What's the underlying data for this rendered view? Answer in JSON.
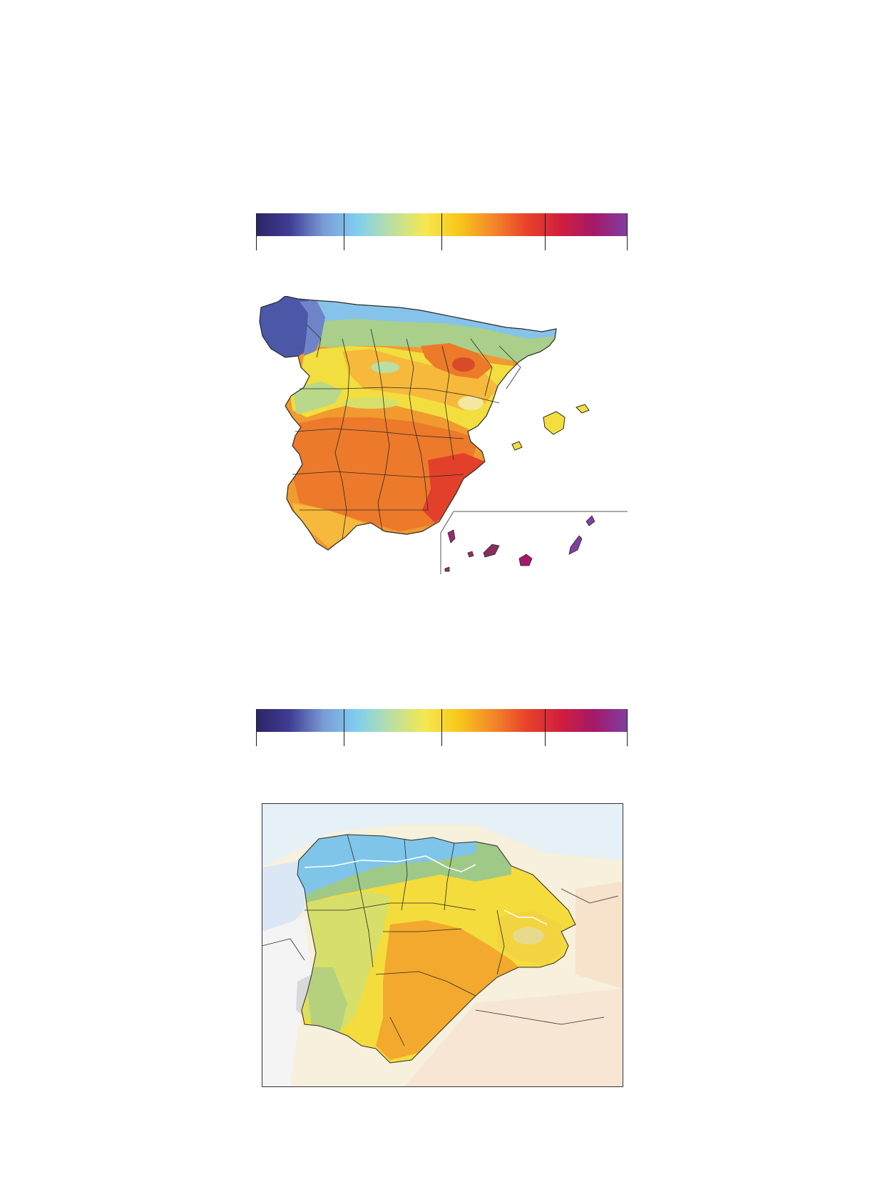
{
  "legend": {
    "colors": [
      "#2d2467",
      "#3f3d94",
      "#7b9bd6",
      "#7fcff0",
      "#b9dfa4",
      "#f5e850",
      "#f8c71a",
      "#f3892a",
      "#e8432a",
      "#d21f3c",
      "#a4196a",
      "#7f3fa0"
    ],
    "tick_labels": [
      "",
      "",
      "",
      "",
      ""
    ]
  },
  "maps": {
    "spain": {
      "outline_color": "#2a2a2a",
      "palette": {
        "northwest": "#4b58a8",
        "north_coast": "#86c3ea",
        "north_green": "#a9cf8b",
        "yellow": "#f2de3e",
        "light_orange": "#f6b93b",
        "orange": "#f09a2f",
        "dark_orange": "#ec7a2a",
        "red": "#e3402b",
        "canary": "#9b2a6d"
      }
    },
    "detail": {
      "frame_color": "#333333",
      "palette": {
        "blue": "#7fc5ea",
        "green": "#9fc987",
        "yellow_green": "#d6df6a",
        "yellow": "#f4dc3c",
        "orange": "#f2a92e",
        "grey_region": "#d9d9dc",
        "faded": "#f3f2e8"
      }
    }
  }
}
